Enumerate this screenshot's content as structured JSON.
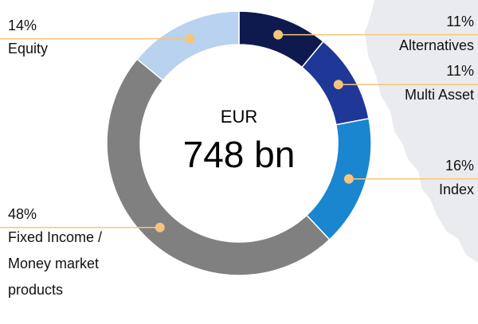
{
  "chart_data": {
    "type": "donut",
    "center_label": "EUR",
    "total_label": "748 bn",
    "categories": [
      "Alternatives",
      "Multi Asset",
      "Index",
      "Fixed Income / Money market products",
      "Equity"
    ],
    "values": [
      11,
      11,
      16,
      48,
      14
    ],
    "value_labels": [
      "11%",
      "11%",
      "16%",
      "48%",
      "14%"
    ],
    "colors": [
      "#0e1a4d",
      "#1f3796",
      "#1a86cf",
      "#808080",
      "#b8d2ef"
    ]
  }
}
